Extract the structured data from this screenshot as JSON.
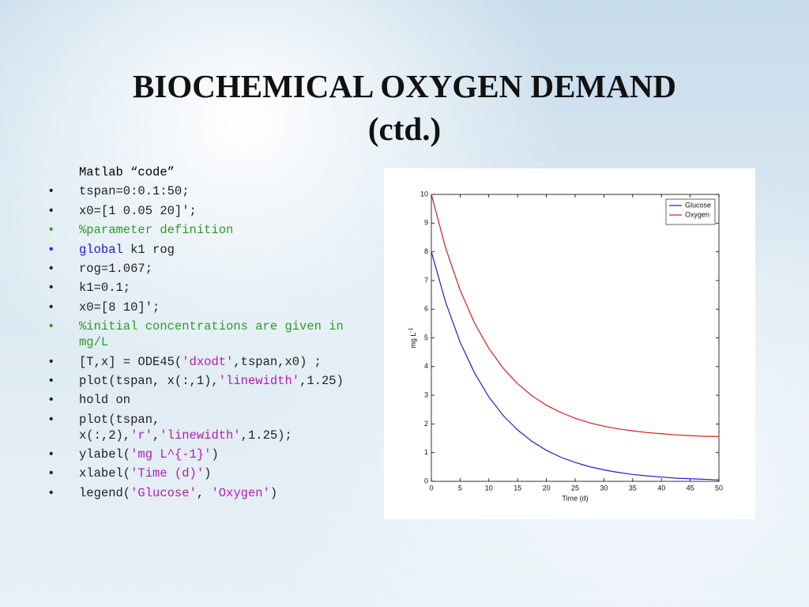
{
  "title": {
    "line1": "BIOCHEMICAL OXYGEN DEMAND",
    "line2": "(ctd.)"
  },
  "code": {
    "heading": "Matlab “code”",
    "lines": [
      {
        "segments": [
          {
            "text": "tspan=0:0.1:50;",
            "color": "#222222"
          }
        ]
      },
      {
        "segments": [
          {
            "text": "x0=[1 0.05 20]';",
            "color": "#222222"
          }
        ]
      },
      {
        "segments": [
          {
            "text": "%parameter definition",
            "color": "#2e9b2e"
          }
        ]
      },
      {
        "segments": [
          {
            "text": "global",
            "color": "#1a1ad6"
          },
          {
            "text": " k1 rog",
            "color": "#222222"
          }
        ]
      },
      {
        "segments": [
          {
            "text": "rog=1.067;",
            "color": "#222222"
          }
        ]
      },
      {
        "segments": [
          {
            "text": "k1=0.1;",
            "color": "#222222"
          }
        ]
      },
      {
        "segments": [
          {
            "text": "x0=[8 10]';",
            "color": "#222222"
          }
        ]
      },
      {
        "segments": [
          {
            "text": "%initial concentrations are given in mg/L",
            "color": "#2e9b2e"
          }
        ]
      },
      {
        "segments": [
          {
            "text": "[T,x] = ODE45(",
            "color": "#222222"
          },
          {
            "text": "'dxodt'",
            "color": "#b01fb0"
          },
          {
            "text": ",tspan,x0) ;",
            "color": "#222222"
          }
        ]
      },
      {
        "segments": [
          {
            "text": "plot(tspan, x(:,1),",
            "color": "#222222"
          },
          {
            "text": "'linewidth'",
            "color": "#b01fb0"
          },
          {
            "text": ",1.25)",
            "color": "#222222"
          }
        ]
      },
      {
        "segments": [
          {
            "text": "hold on",
            "color": "#222222"
          }
        ]
      },
      {
        "segments": [
          {
            "text": "plot(tspan, x(:,2),",
            "color": "#222222"
          },
          {
            "text": "'r'",
            "color": "#b01fb0"
          },
          {
            "text": ",",
            "color": "#222222"
          },
          {
            "text": "'linewidth'",
            "color": "#b01fb0"
          },
          {
            "text": ",1.25);",
            "color": "#222222"
          }
        ]
      },
      {
        "segments": [
          {
            "text": "ylabel(",
            "color": "#222222"
          },
          {
            "text": "'mg L^{-1}'",
            "color": "#b01fb0"
          },
          {
            "text": ")",
            "color": "#222222"
          }
        ]
      },
      {
        "segments": [
          {
            "text": "xlabel(",
            "color": "#222222"
          },
          {
            "text": "'Time (d)'",
            "color": "#b01fb0"
          },
          {
            "text": ")",
            "color": "#222222"
          }
        ]
      },
      {
        "segments": [
          {
            "text": "legend(",
            "color": "#222222"
          },
          {
            "text": "'Glucose'",
            "color": "#b01fb0"
          },
          {
            "text": ", ",
            "color": "#222222"
          },
          {
            "text": "'Oxygen'",
            "color": "#b01fb0"
          },
          {
            "text": ")",
            "color": "#222222"
          }
        ]
      }
    ]
  },
  "chart_data": {
    "type": "line",
    "xlabel": "Time (d)",
    "ylabel": {
      "base": "mg L",
      "superscript": "-1"
    },
    "x": [
      0,
      2.5,
      5,
      7.5,
      10,
      12.5,
      15,
      17.5,
      20,
      22.5,
      25,
      27.5,
      30,
      32.5,
      35,
      37.5,
      40,
      42.5,
      45,
      47.5,
      50
    ],
    "series": [
      {
        "name": "Glucose",
        "color": "#1f1fc8",
        "values": [
          8,
          6.23,
          4.85,
          3.78,
          2.94,
          2.29,
          1.79,
          1.39,
          1.08,
          0.84,
          0.66,
          0.51,
          0.4,
          0.31,
          0.24,
          0.19,
          0.15,
          0.11,
          0.09,
          0.07,
          0.05
        ]
      },
      {
        "name": "Oxygen",
        "color": "#cc1f1f",
        "values": [
          10,
          8.12,
          6.66,
          5.52,
          4.63,
          3.94,
          3.4,
          2.98,
          2.65,
          2.4,
          2.2,
          2.04,
          1.92,
          1.83,
          1.76,
          1.7,
          1.66,
          1.62,
          1.59,
          1.57,
          1.56
        ]
      }
    ],
    "xlim": [
      0,
      50
    ],
    "xticks": [
      0,
      5,
      10,
      15,
      20,
      25,
      30,
      35,
      40,
      45,
      50
    ],
    "ylim": [
      0,
      10
    ],
    "yticks": [
      0,
      1,
      2,
      3,
      4,
      5,
      6,
      7,
      8,
      9,
      10
    ],
    "legend": "top-right"
  }
}
